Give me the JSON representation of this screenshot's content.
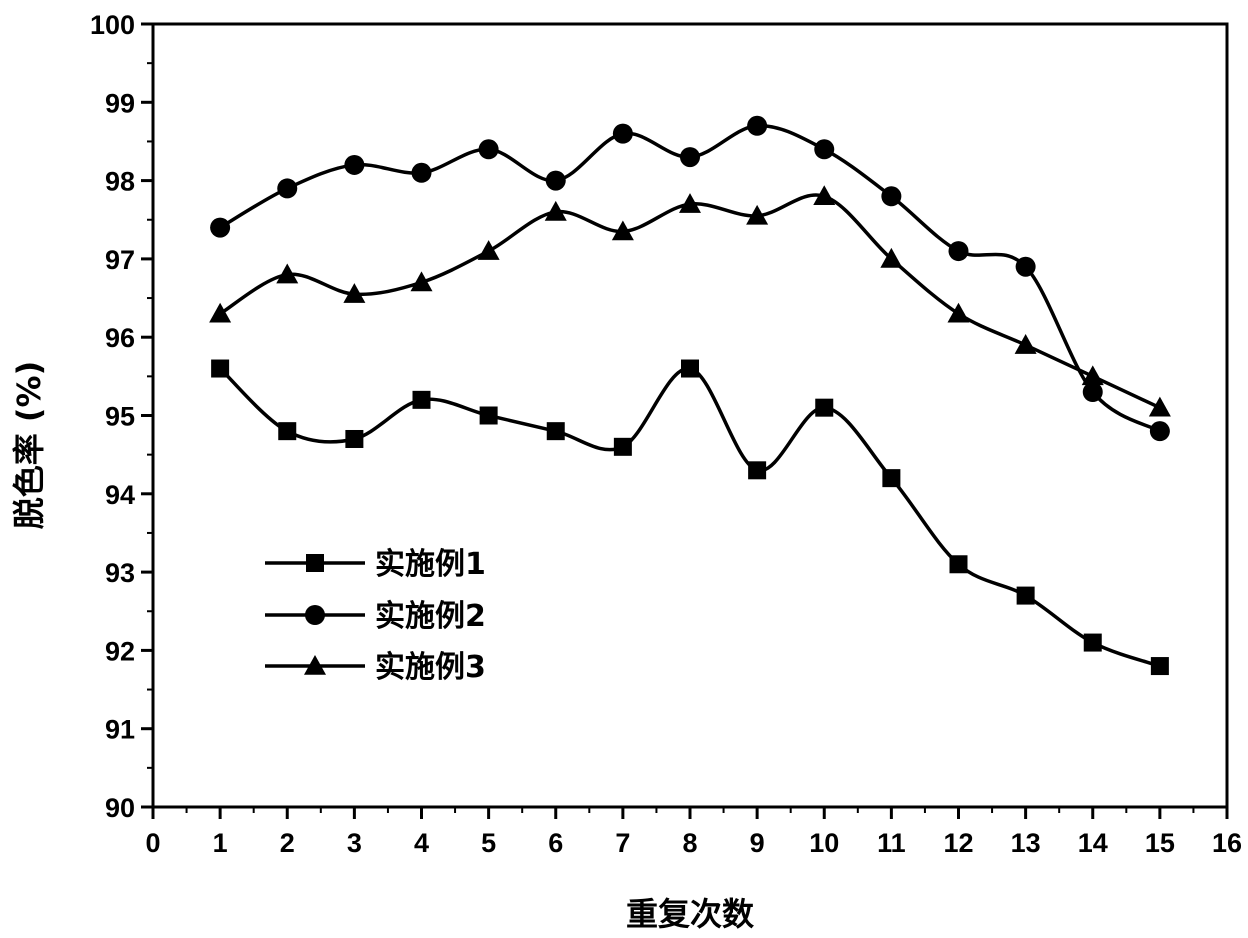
{
  "chart_data": {
    "type": "line",
    "xlabel": "重复次数",
    "ylabel": "脱色率 (%)",
    "xlim": [
      0,
      16
    ],
    "ylim": [
      90,
      100
    ],
    "xticks": [
      0,
      1,
      2,
      3,
      4,
      5,
      6,
      7,
      8,
      9,
      10,
      11,
      12,
      13,
      14,
      15,
      16
    ],
    "yticks": [
      90,
      91,
      92,
      93,
      94,
      95,
      96,
      97,
      98,
      99,
      100
    ],
    "grid": false,
    "legend_position": "left",
    "x": [
      1,
      2,
      3,
      4,
      5,
      6,
      7,
      8,
      9,
      10,
      11,
      12,
      13,
      14,
      15
    ],
    "series": [
      {
        "name": "实施例1",
        "marker": "square",
        "values": [
          95.6,
          94.8,
          94.7,
          95.2,
          95.0,
          94.8,
          94.6,
          95.6,
          94.3,
          95.1,
          94.2,
          93.1,
          92.7,
          92.1,
          91.8
        ]
      },
      {
        "name": "实施例2",
        "marker": "circle",
        "values": [
          97.4,
          97.9,
          98.2,
          98.1,
          98.4,
          98.0,
          98.6,
          98.3,
          98.7,
          98.4,
          97.8,
          97.1,
          96.9,
          95.3,
          94.8
        ]
      },
      {
        "name": "实施例3",
        "marker": "triangle",
        "values": [
          96.3,
          96.8,
          96.55,
          96.7,
          97.1,
          97.6,
          97.35,
          97.7,
          97.55,
          97.8,
          97.0,
          96.3,
          95.9,
          95.5,
          95.1
        ]
      }
    ],
    "colors": {
      "line": "#000000",
      "background": "#ffffff"
    }
  }
}
